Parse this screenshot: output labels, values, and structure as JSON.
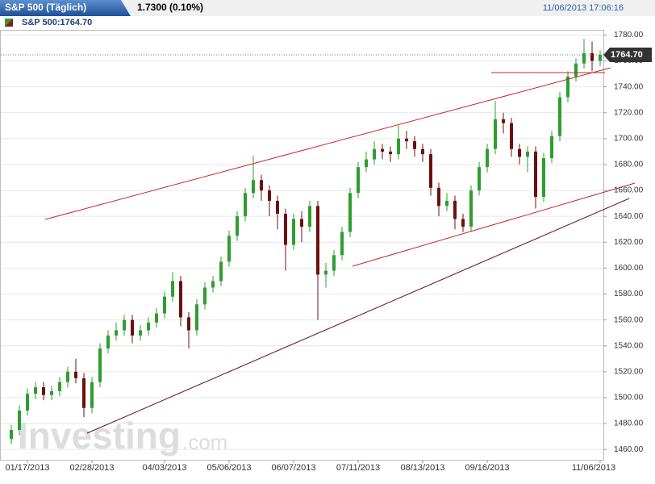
{
  "chart_data": {
    "type": "candlestick",
    "title": "S&P 500 (Täglich)",
    "change": "1.7300 (0.10%)",
    "timestamp": "11/06/2013 17:06:16",
    "series_label": "S&P 500:1764.70",
    "watermark": [
      "Investing",
      ".com"
    ],
    "last": {
      "value": 1764.7,
      "label": "1764.70"
    },
    "up_color": "#2e9e2e",
    "down_color": "#6b1010",
    "grid": true,
    "ylim": [
      1452,
      1784
    ],
    "yticks": [
      {
        "value": 1460,
        "label": "1460.00"
      },
      {
        "value": 1480,
        "label": "1480.00"
      },
      {
        "value": 1500,
        "label": "1500.00"
      },
      {
        "value": 1520,
        "label": "1520.00"
      },
      {
        "value": 1540,
        "label": "1540.00"
      },
      {
        "value": 1560,
        "label": "1560.00"
      },
      {
        "value": 1580,
        "label": "1580.00"
      },
      {
        "value": 1600,
        "label": "1600.00"
      },
      {
        "value": 1620,
        "label": "1620.00"
      },
      {
        "value": 1640,
        "label": "1640.00"
      },
      {
        "value": 1660,
        "label": "1660.00"
      },
      {
        "value": 1680,
        "label": "1680.00"
      },
      {
        "value": 1700,
        "label": "1700.00"
      },
      {
        "value": 1720,
        "label": "1720.00"
      },
      {
        "value": 1740,
        "label": "1740.00"
      },
      {
        "value": 1760,
        "label": "1760.00"
      },
      {
        "value": 1780,
        "label": "1780.00"
      }
    ],
    "categories": [
      null,
      null,
      "01/17/2013",
      null,
      null,
      null,
      null,
      null,
      null,
      null,
      "02/28/2013",
      null,
      null,
      null,
      null,
      null,
      null,
      null,
      null,
      "04/03/2013",
      null,
      null,
      null,
      null,
      null,
      null,
      null,
      "05/06/2013",
      null,
      null,
      null,
      null,
      null,
      null,
      null,
      "06/07/2013",
      null,
      null,
      null,
      null,
      null,
      null,
      null,
      "07/11/2013",
      null,
      null,
      null,
      null,
      null,
      null,
      null,
      "08/13/2013",
      null,
      null,
      null,
      null,
      null,
      null,
      null,
      "09/16/2013",
      null,
      null,
      null,
      null,
      null,
      null,
      null,
      null,
      null,
      null,
      null,
      null,
      null,
      "11/06/2013"
    ],
    "open": [
      1468,
      1475,
      1490,
      1503,
      1508,
      1502,
      1505,
      1512,
      1520,
      1515,
      1492,
      1512,
      1538,
      1548,
      1552,
      1560,
      1548,
      1552,
      1558,
      1565,
      1578,
      1590,
      1562,
      1552,
      1572,
      1585,
      1590,
      1605,
      1625,
      1640,
      1658,
      1668,
      1660,
      1652,
      1642,
      1618,
      1638,
      1632,
      1648,
      1595,
      1598,
      1610,
      1628,
      1658,
      1678,
      1684,
      1692,
      1690,
      1688,
      1700,
      1698,
      1692,
      1688,
      1662,
      1648,
      1652,
      1638,
      1632,
      1660,
      1678,
      1692,
      1715,
      1712,
      1692,
      1686,
      1690,
      1655,
      1685,
      1702,
      1732,
      1748,
      1758,
      1766,
      1760
    ],
    "high": [
      1479,
      1494,
      1507,
      1512,
      1512,
      1509,
      1516,
      1524,
      1530,
      1519,
      1516,
      1542,
      1552,
      1558,
      1564,
      1564,
      1556,
      1562,
      1569,
      1582,
      1597,
      1594,
      1566,
      1576,
      1589,
      1594,
      1609,
      1629,
      1644,
      1662,
      1687,
      1672,
      1664,
      1656,
      1646,
      1642,
      1644,
      1652,
      1652,
      1604,
      1614,
      1632,
      1662,
      1682,
      1690,
      1698,
      1696,
      1694,
      1710,
      1706,
      1702,
      1696,
      1692,
      1666,
      1658,
      1656,
      1642,
      1664,
      1682,
      1696,
      1729,
      1720,
      1716,
      1696,
      1694,
      1694,
      1689,
      1706,
      1736,
      1752,
      1762,
      1777,
      1775,
      1768
    ],
    "low": [
      1464,
      1471,
      1486,
      1499,
      1498,
      1498,
      1501,
      1508,
      1511,
      1485,
      1488,
      1508,
      1534,
      1544,
      1548,
      1542,
      1544,
      1548,
      1554,
      1561,
      1574,
      1555,
      1538,
      1548,
      1568,
      1581,
      1586,
      1601,
      1621,
      1636,
      1654,
      1652,
      1640,
      1630,
      1598,
      1614,
      1620,
      1628,
      1560,
      1585,
      1594,
      1606,
      1624,
      1654,
      1674,
      1680,
      1684,
      1682,
      1684,
      1692,
      1686,
      1682,
      1656,
      1640,
      1644,
      1630,
      1628,
      1628,
      1656,
      1674,
      1688,
      1704,
      1686,
      1680,
      1674,
      1646,
      1651,
      1681,
      1698,
      1728,
      1744,
      1754,
      1752,
      1756
    ],
    "close": [
      1475,
      1490,
      1503,
      1508,
      1502,
      1505,
      1512,
      1520,
      1515,
      1492,
      1512,
      1538,
      1548,
      1552,
      1560,
      1548,
      1552,
      1558,
      1565,
      1578,
      1590,
      1562,
      1552,
      1572,
      1585,
      1590,
      1605,
      1625,
      1640,
      1658,
      1668,
      1660,
      1652,
      1642,
      1618,
      1638,
      1632,
      1648,
      1595,
      1598,
      1610,
      1628,
      1658,
      1678,
      1684,
      1692,
      1690,
      1688,
      1700,
      1698,
      1692,
      1688,
      1662,
      1648,
      1652,
      1638,
      1632,
      1660,
      1678,
      1692,
      1715,
      1712,
      1692,
      1686,
      1690,
      1655,
      1685,
      1702,
      1732,
      1748,
      1758,
      1766,
      1760,
      1764.7
    ]
  }
}
